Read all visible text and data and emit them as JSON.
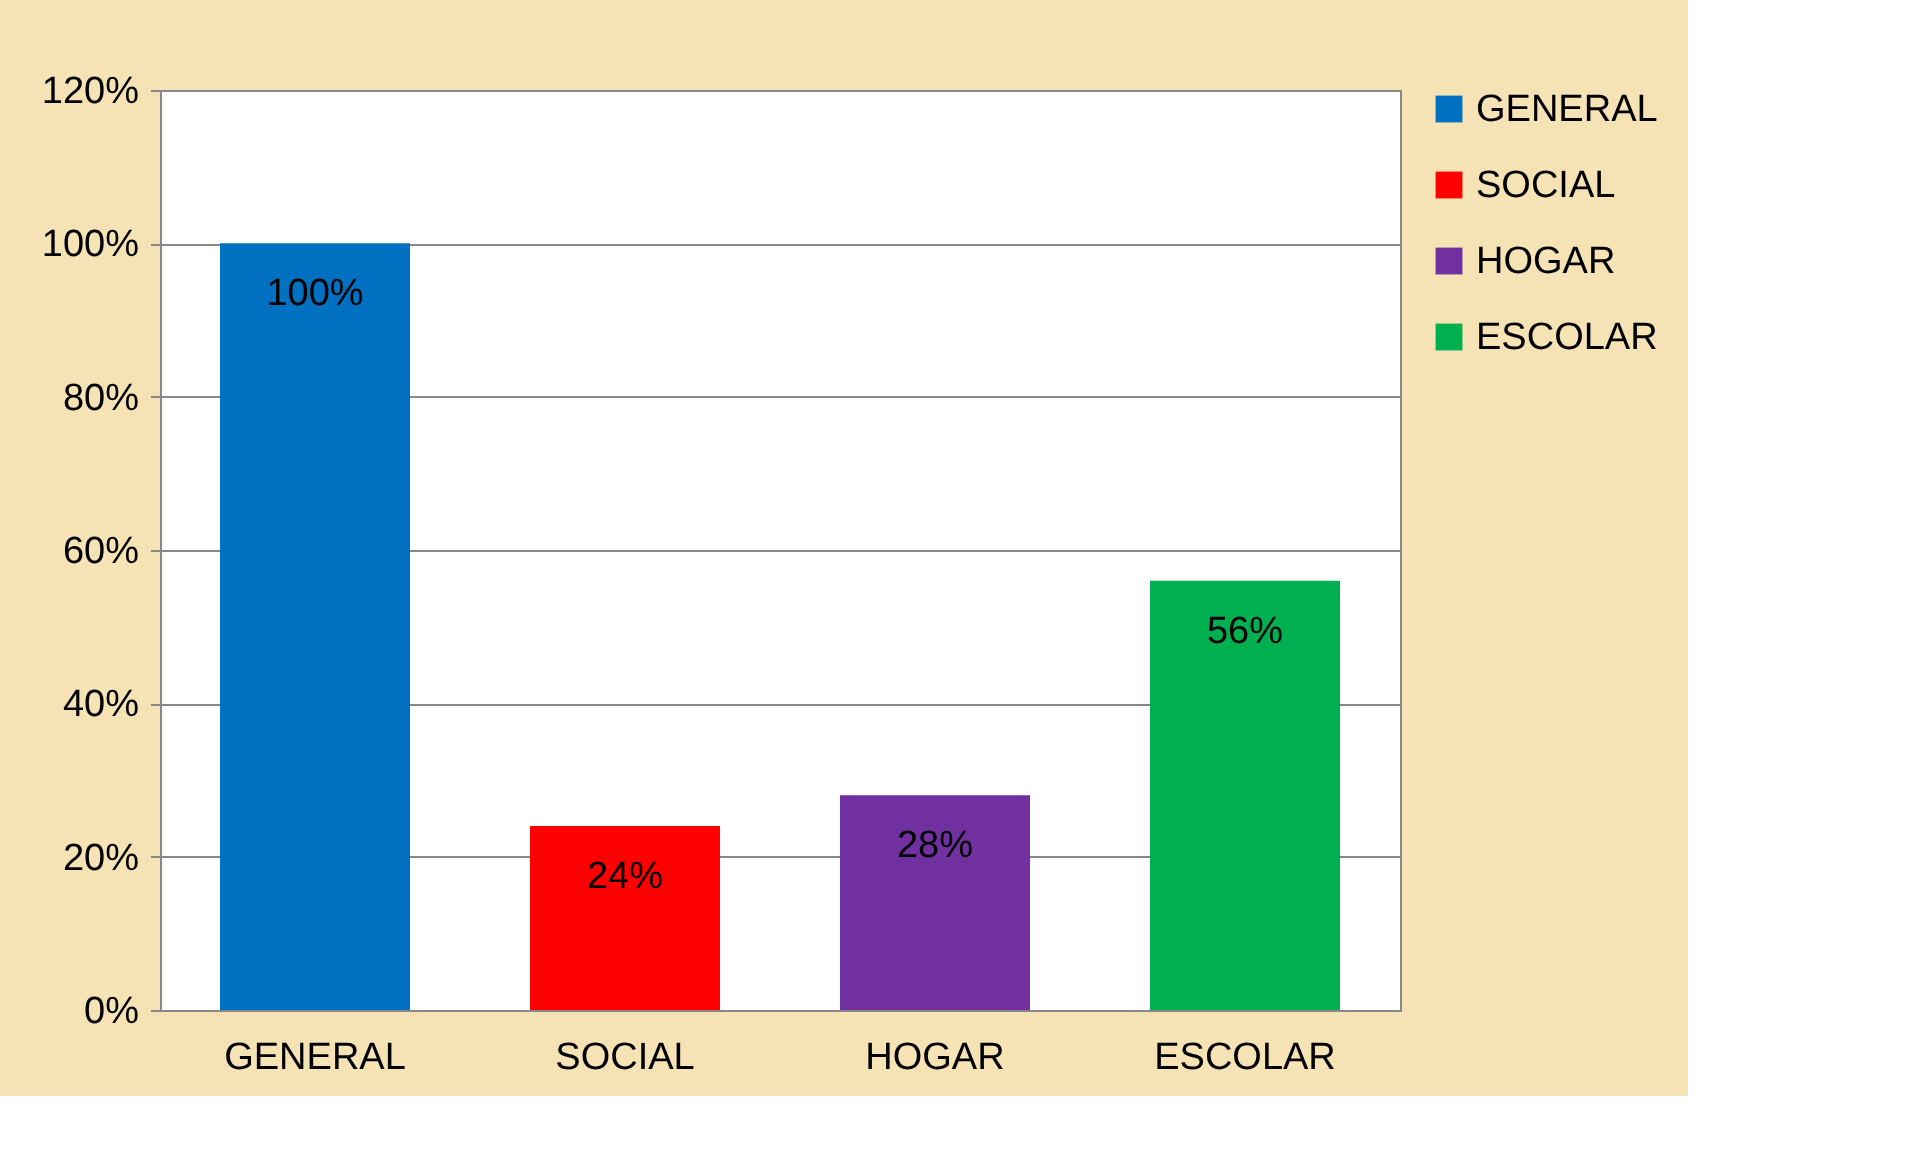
{
  "chart_data": {
    "type": "bar",
    "stacked": true,
    "categories": [
      "GENERAL",
      "SOCIAL",
      "HOGAR",
      "ESCOLAR"
    ],
    "series": [
      {
        "name": "GENERAL",
        "color": "#0070c0",
        "values": [
          100,
          null,
          null,
          null
        ],
        "value_labels": [
          "100%",
          null,
          null,
          null
        ]
      },
      {
        "name": "SOCIAL",
        "color": "#ff0000",
        "values": [
          null,
          24,
          null,
          null
        ],
        "value_labels": [
          null,
          "24%",
          null,
          null
        ]
      },
      {
        "name": "HOGAR",
        "color": "#7030a0",
        "values": [
          null,
          null,
          28,
          null
        ],
        "value_labels": [
          null,
          null,
          "28%",
          null
        ]
      },
      {
        "name": "ESCOLAR",
        "color": "#00b050",
        "values": [
          null,
          null,
          null,
          56
        ],
        "value_labels": [
          null,
          null,
          null,
          "56%"
        ]
      }
    ],
    "ylim": [
      0,
      120
    ],
    "yticks": [
      {
        "value": 0,
        "label": "0%"
      },
      {
        "value": 20,
        "label": "20%"
      },
      {
        "value": 40,
        "label": "40%"
      },
      {
        "value": 60,
        "label": "60%"
      },
      {
        "value": 80,
        "label": "80%"
      },
      {
        "value": 100,
        "label": "100%"
      },
      {
        "value": 120,
        "label": "120%"
      }
    ],
    "grid": "y",
    "legend": "right"
  }
}
